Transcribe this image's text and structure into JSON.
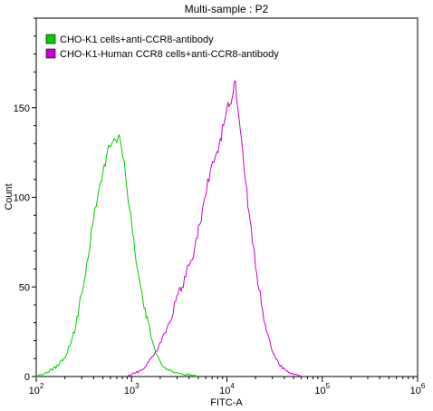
{
  "chart_data": {
    "type": "line",
    "title": "Multi-sample : P2",
    "xlabel": "FITC-A",
    "ylabel": "Count",
    "x_scale": "log",
    "xlim": [
      100,
      1000000
    ],
    "ylim": [
      0,
      200
    ],
    "x_ticks": [
      {
        "value": 100,
        "base": "10",
        "exp": "2"
      },
      {
        "value": 1000,
        "base": "10",
        "exp": "3"
      },
      {
        "value": 10000,
        "base": "10",
        "exp": "4"
      },
      {
        "value": 100000,
        "base": "10",
        "exp": "5"
      },
      {
        "value": 1000000,
        "base": "10",
        "exp": "6"
      }
    ],
    "y_ticks": [
      0,
      50,
      100,
      150
    ],
    "grid": false,
    "legend_position": "top-left",
    "series": [
      {
        "name": "CHO-K1 cells+anti-CCR8-antibody",
        "color": "#00cc00",
        "x": [
          100,
          110,
          125,
          145,
          170,
          195,
          225,
          260,
          300,
          340,
          390,
          440,
          500,
          560,
          620,
          680,
          740,
          790,
          840,
          880,
          920,
          970,
          1020,
          1080,
          1150,
          1250,
          1350,
          1500,
          1650,
          1850,
          2050,
          2300,
          2600,
          3000,
          3500,
          4200,
          5000
        ],
        "y": [
          0,
          1,
          2,
          4,
          6,
          10,
          17,
          28,
          46,
          64,
          84,
          100,
          114,
          126,
          130,
          132,
          135,
          126,
          120,
          108,
          98,
          92,
          80,
          70,
          60,
          50,
          38,
          30,
          20,
          12,
          7,
          4,
          3,
          2,
          1,
          1,
          0
        ]
      },
      {
        "name": "CHO-K1-Human CCR8 cells+anti-CCR8-antibody",
        "color": "#cc00cc",
        "x": [
          900,
          1100,
          1300,
          1500,
          1800,
          2100,
          2500,
          2900,
          3400,
          4000,
          4600,
          5200,
          5900,
          6700,
          7500,
          8300,
          9200,
          10000,
          10800,
          11600,
          12300,
          13000,
          13800,
          14700,
          15800,
          17000,
          18500,
          20500,
          23000,
          26000,
          30000,
          35000,
          42000,
          50000,
          60000
        ],
        "y": [
          0,
          2,
          4,
          8,
          14,
          22,
          30,
          42,
          50,
          62,
          72,
          85,
          100,
          115,
          122,
          130,
          140,
          150,
          152,
          158,
          165,
          150,
          138,
          125,
          108,
          92,
          75,
          58,
          40,
          25,
          14,
          7,
          3,
          1,
          0
        ]
      }
    ]
  }
}
